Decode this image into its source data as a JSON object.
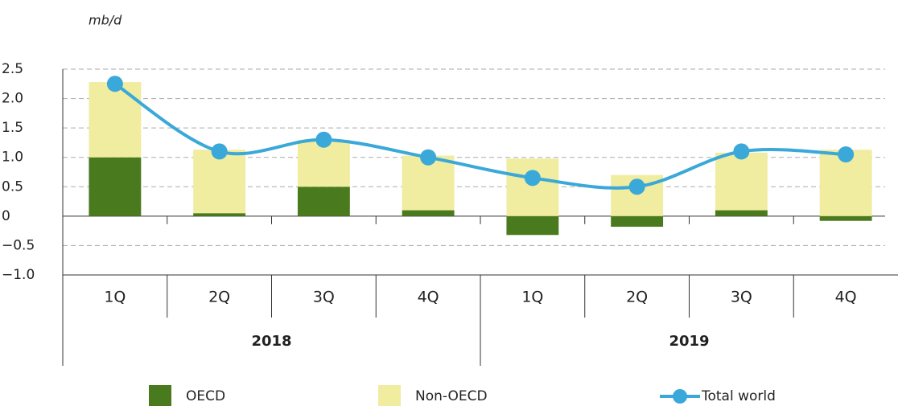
{
  "chart_data": {
    "type": "bar",
    "y_label": "mb/d",
    "categories": [
      "1Q",
      "2Q",
      "3Q",
      "4Q",
      "1Q",
      "2Q",
      "3Q",
      "4Q"
    ],
    "groups": [
      "2018",
      "2019"
    ],
    "series": [
      {
        "name": "OECD",
        "kind": "bar",
        "color": "#4a7a1e",
        "values": [
          1.0,
          0.05,
          0.5,
          0.1,
          -0.32,
          -0.18,
          0.1,
          -0.08
        ]
      },
      {
        "name": "Non-OECD",
        "kind": "bar",
        "color": "#f0eca0",
        "values": [
          1.28,
          1.08,
          0.8,
          0.93,
          0.98,
          0.7,
          0.98,
          1.13
        ]
      },
      {
        "name": "Total world",
        "kind": "line",
        "color": "#3aa8d8",
        "values": [
          2.25,
          1.1,
          1.3,
          1.0,
          0.65,
          0.5,
          1.1,
          1.05
        ]
      }
    ],
    "ylim": [
      -1.0,
      2.5
    ],
    "yticks": [
      {
        "value": -1.0,
        "label": "−1.0"
      },
      {
        "value": -0.5,
        "label": "−0.5"
      },
      0,
      0.5,
      {
        "value": 1.0,
        "label": "1.0"
      },
      1.5,
      {
        "value": 2.0,
        "label": "2.0"
      },
      2.5
    ],
    "grid": true,
    "legend": "bottom"
  }
}
